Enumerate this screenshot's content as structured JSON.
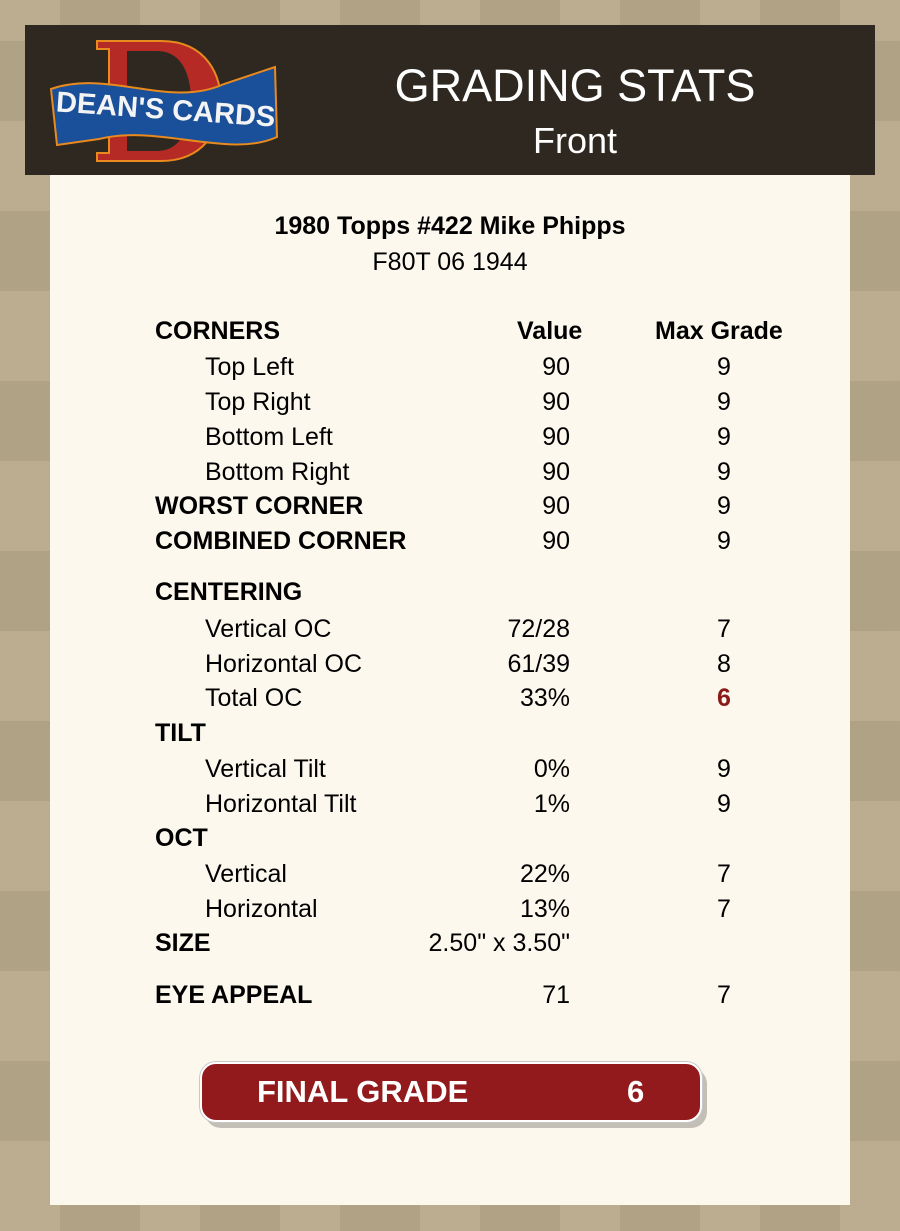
{
  "header": {
    "logo_text": "DEAN'S CARDS",
    "title": "GRADING STATS",
    "subtitle": "Front"
  },
  "card": {
    "name": "1980 Topps #422 Mike Phipps",
    "code": "F80T 06 1944"
  },
  "columns": {
    "value": "Value",
    "max_grade": "Max Grade"
  },
  "colors": {
    "header_bg": "#2e2820",
    "panel_bg": "#fcf8ee",
    "accent_red": "#921a1c",
    "highlight": "#8b1a1a"
  },
  "rows": [
    {
      "label": "CORNERS",
      "value": "",
      "max": "",
      "bold": true
    },
    {
      "label": "Top Left",
      "value": "90",
      "max": "9",
      "indent": true
    },
    {
      "label": "Top Right",
      "value": "90",
      "max": "9",
      "indent": true
    },
    {
      "label": "Bottom Left",
      "value": "90",
      "max": "9",
      "indent": true
    },
    {
      "label": "Bottom Right",
      "value": "90",
      "max": "9",
      "indent": true
    },
    {
      "label": "WORST CORNER",
      "value": "90",
      "max": "9",
      "bold": true
    },
    {
      "label": "COMBINED CORNER",
      "value": "90",
      "max": "9",
      "bold": true
    },
    {
      "label": "CENTERING",
      "value": "",
      "max": "",
      "bold": true
    },
    {
      "label": "Vertical OC",
      "value": "72/28",
      "max": "7",
      "indent": true
    },
    {
      "label": "Horizontal OC",
      "value": "61/39",
      "max": "8",
      "indent": true
    },
    {
      "label": "Total OC",
      "value": "33%",
      "max": "6",
      "indent": true,
      "highlight": true
    },
    {
      "label": "TILT",
      "value": "",
      "max": "",
      "bold": true
    },
    {
      "label": "Vertical Tilt",
      "value": "0%",
      "max": "9",
      "indent": true
    },
    {
      "label": "Horizontal Tilt",
      "value": "1%",
      "max": "9",
      "indent": true
    },
    {
      "label": "OCT",
      "value": "",
      "max": "",
      "bold": true
    },
    {
      "label": "Vertical",
      "value": "22%",
      "max": "7",
      "indent": true
    },
    {
      "label": "Horizontal",
      "value": "13%",
      "max": "7",
      "indent": true
    },
    {
      "label": "SIZE",
      "value": "2.50\" x 3.50\"",
      "max": "",
      "bold": true
    },
    {
      "label": "EYE APPEAL",
      "value": "71",
      "max": "7",
      "bold": true
    }
  ],
  "final": {
    "label": "FINAL GRADE",
    "value": "6"
  }
}
